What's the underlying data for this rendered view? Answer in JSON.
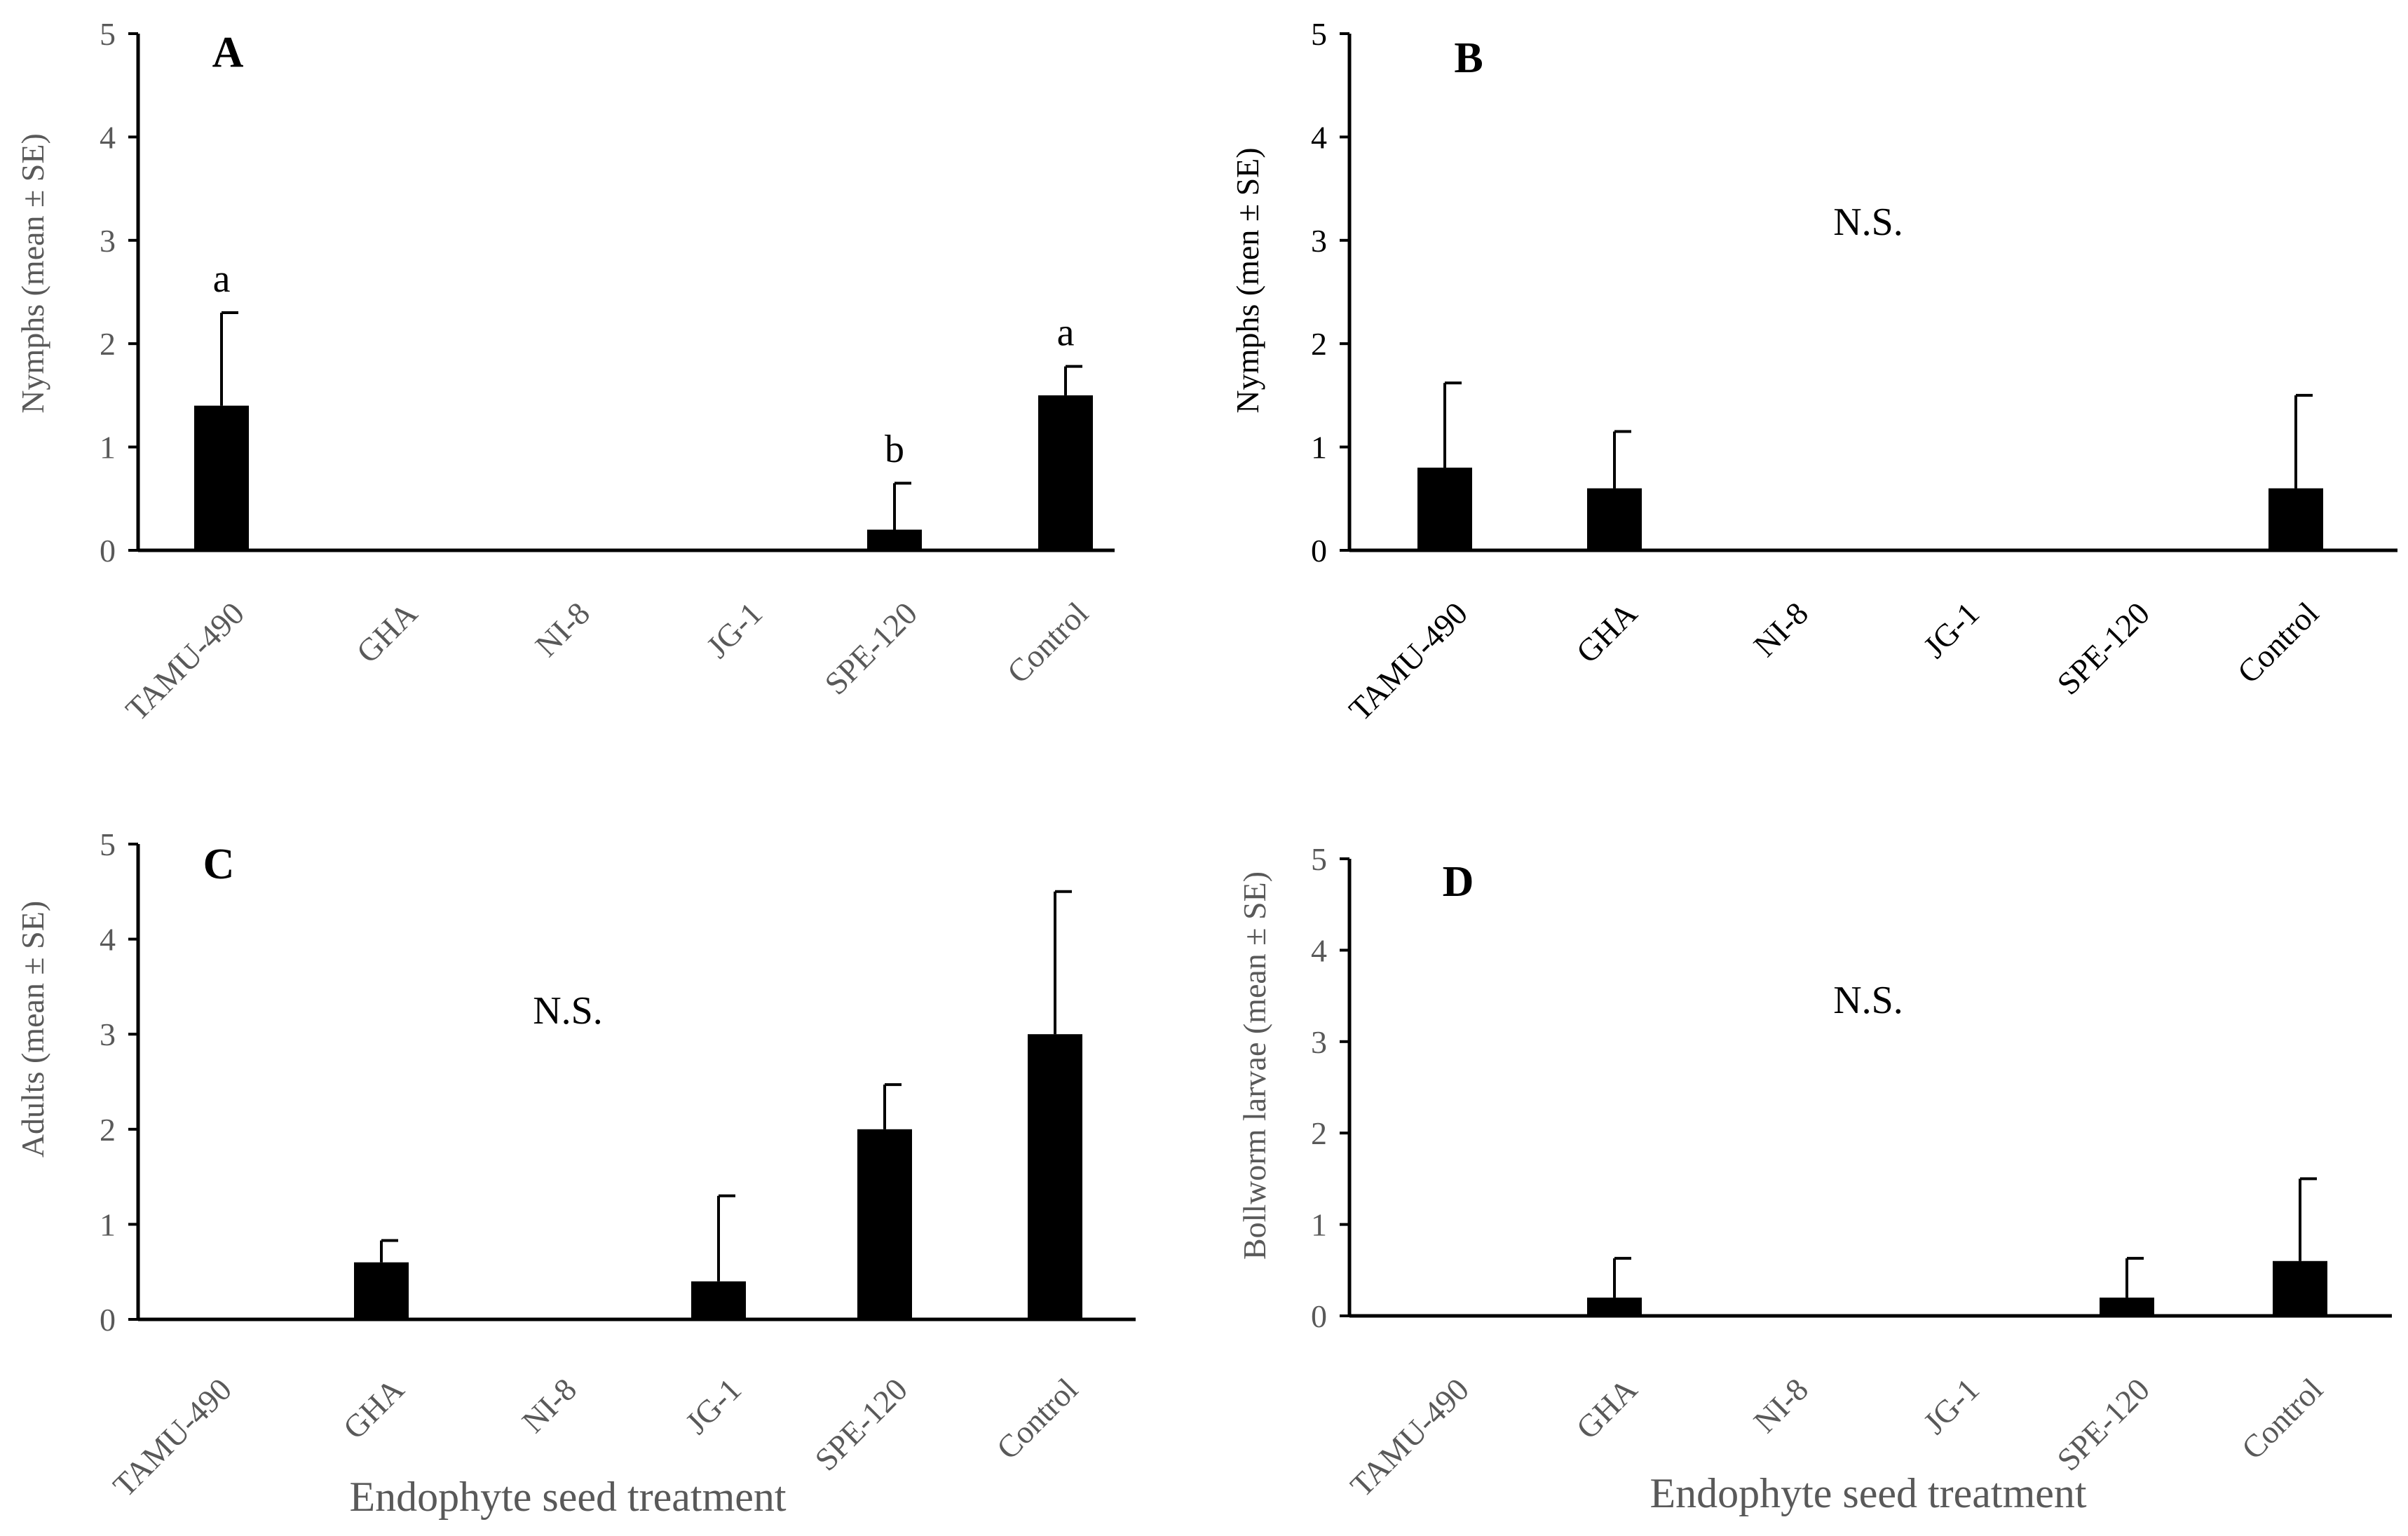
{
  "figure": {
    "x_axis_title": "Endophyte seed treatment",
    "colors": {
      "bar": "#000000",
      "axis": "#000000",
      "muted_text": "#595959",
      "text": "#000000"
    }
  },
  "chart_data": [
    {
      "type": "bar",
      "panel": "A",
      "categories": [
        "TAMU-490",
        "GHA",
        "NI-8",
        "JG-1",
        "SPE-120",
        "Control"
      ],
      "values": [
        1.4,
        0,
        0,
        0,
        0.2,
        1.5
      ],
      "errors": [
        0.9,
        0,
        0,
        0,
        0.45,
        0.28
      ],
      "significance_letters": [
        "a",
        "",
        "",
        "",
        "b",
        "a"
      ],
      "annotation": "",
      "ylabel": "Nymphs (mean ± SE)",
      "ylim": [
        0,
        5
      ],
      "yticks": [
        "0",
        "1",
        "2",
        "3",
        "4",
        "5"
      ],
      "muted_labels": true
    },
    {
      "type": "bar",
      "panel": "B",
      "categories": [
        "TAMU-490",
        "GHA",
        "NI-8",
        "JG-1",
        "SPE-120",
        "Control"
      ],
      "values": [
        0.8,
        0.6,
        0,
        0,
        0,
        0.6
      ],
      "errors": [
        0.82,
        0.55,
        0,
        0,
        0,
        0.9
      ],
      "significance_letters": [
        "",
        "",
        "",
        "",
        "",
        ""
      ],
      "annotation": "N.S.",
      "ylabel": "Nymphs (men ± SE)",
      "ylim": [
        0,
        5
      ],
      "yticks": [
        "0",
        "1",
        "2",
        "3",
        "4",
        "5"
      ],
      "muted_labels": false
    },
    {
      "type": "bar",
      "panel": "C",
      "categories": [
        "TAMU-490",
        "GHA",
        "NI-8",
        "JG-1",
        "SPE-120",
        "Control"
      ],
      "values": [
        0,
        0.6,
        0,
        0.4,
        2.0,
        3.0
      ],
      "errors": [
        0,
        0.23,
        0,
        0.9,
        0.47,
        1.5
      ],
      "significance_letters": [
        "",
        "",
        "",
        "",
        "",
        ""
      ],
      "annotation": "N.S.",
      "ylabel": "Adults (mean ± SE)",
      "ylim": [
        0,
        5
      ],
      "yticks": [
        "0",
        "1",
        "2",
        "3",
        "4",
        "5"
      ],
      "muted_labels": true
    },
    {
      "type": "bar",
      "panel": "D",
      "categories": [
        "TAMU-490",
        "GHA",
        "NI-8",
        "JG-1",
        "SPE-120",
        "Control"
      ],
      "values": [
        0,
        0.2,
        0,
        0,
        0.2,
        0.6
      ],
      "errors": [
        0,
        0.43,
        0,
        0,
        0.43,
        0.9
      ],
      "significance_letters": [
        "",
        "",
        "",
        "",
        "",
        ""
      ],
      "annotation": "N.S.",
      "ylabel": "Bollworm larvae (mean ± SE)",
      "ylim": [
        0,
        5
      ],
      "yticks": [
        "0",
        "1",
        "2",
        "3",
        "4",
        "5"
      ],
      "muted_labels": true
    }
  ]
}
